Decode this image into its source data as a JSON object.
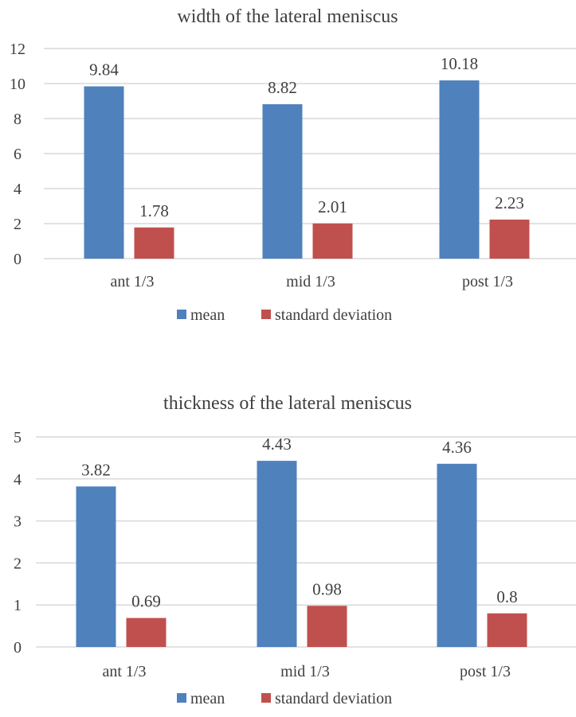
{
  "chart_data": [
    {
      "type": "bar",
      "title": "width of the lateral meniscus",
      "categories": [
        "ant 1/3",
        "mid 1/3",
        "post 1/3"
      ],
      "series": [
        {
          "name": "mean",
          "color": "#4F81BD",
          "values": [
            9.84,
            8.82,
            10.18
          ],
          "labels": [
            "9.84",
            "8.82",
            "10.18"
          ]
        },
        {
          "name": "standard deviation",
          "color": "#C0504D",
          "values": [
            1.78,
            2.01,
            2.23
          ],
          "labels": [
            "1.78",
            "2.01",
            "2.23"
          ]
        }
      ],
      "ylim": [
        0,
        12
      ],
      "yticks": [
        "0",
        "2",
        "4",
        "6",
        "8",
        "10",
        "12"
      ],
      "ytick_values": [
        0,
        2,
        4,
        6,
        8,
        10,
        12
      ],
      "grid": true,
      "legend": "bottom"
    },
    {
      "type": "bar",
      "title": "thickness of the lateral meniscus",
      "categories": [
        "ant 1/3",
        "mid 1/3",
        "post 1/3"
      ],
      "series": [
        {
          "name": "mean",
          "color": "#4F81BD",
          "values": [
            3.82,
            4.43,
            4.36
          ],
          "labels": [
            "3.82",
            "4.43",
            "4.36"
          ]
        },
        {
          "name": "standard deviation",
          "color": "#C0504D",
          "values": [
            0.69,
            0.98,
            0.8
          ],
          "labels": [
            "0.69",
            "0.98",
            "0.8"
          ]
        }
      ],
      "ylim": [
        0,
        5
      ],
      "yticks": [
        "0",
        "1",
        "2",
        "3",
        "4",
        "5"
      ],
      "ytick_values": [
        0,
        1,
        2,
        3,
        4,
        5
      ],
      "grid": true,
      "legend": "bottom"
    }
  ]
}
